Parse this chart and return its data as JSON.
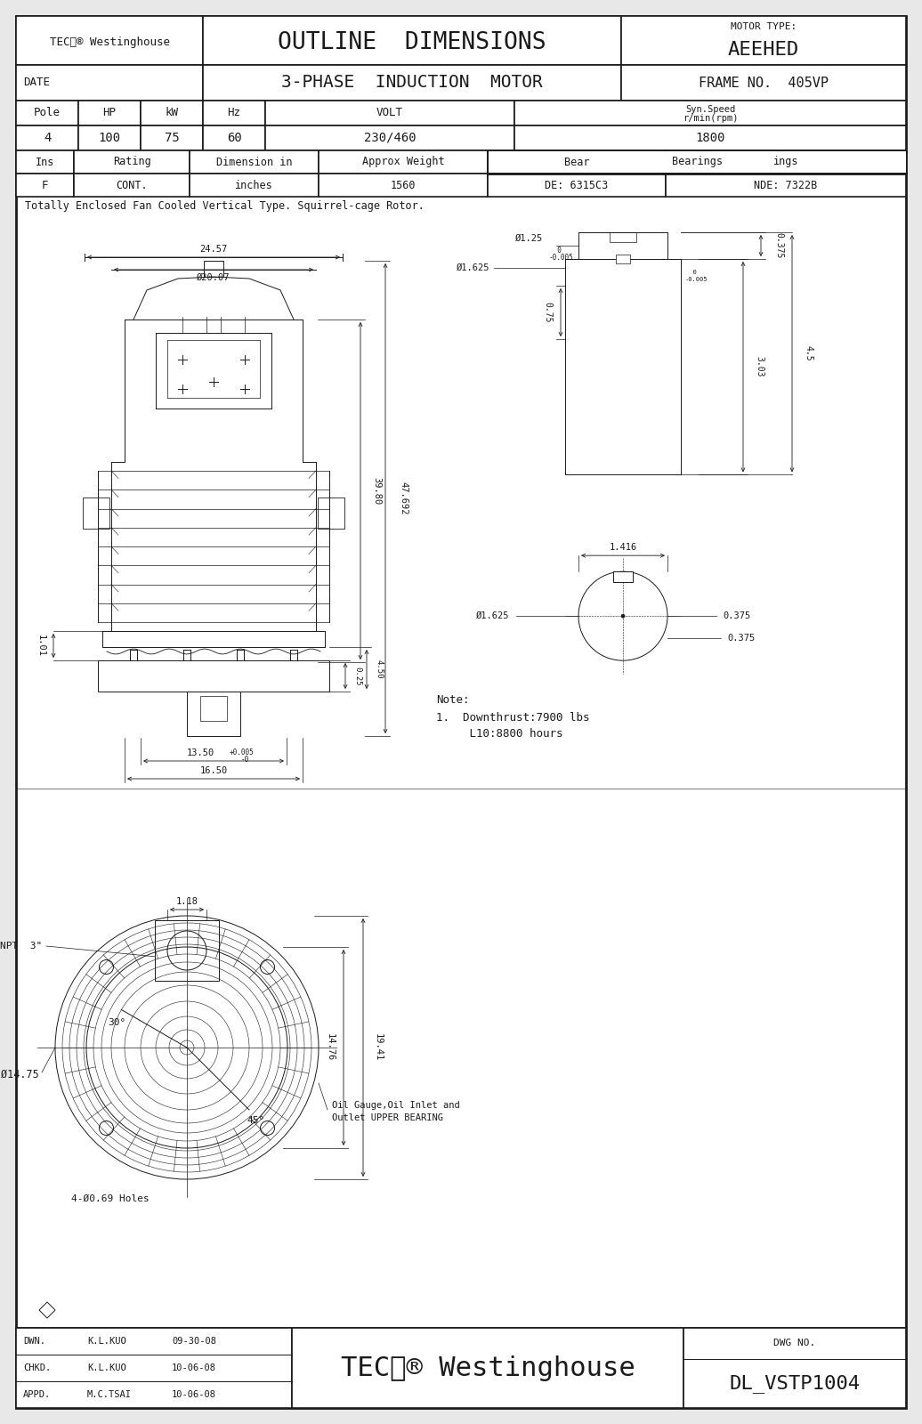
{
  "bg_color": "#e8e8e8",
  "paper_color": "#ffffff",
  "line_color": "#1a1a1a",
  "title1": "OUTLINE  DIMENSIONS",
  "title2": "3-PHASE  INDUCTION  MOTOR",
  "motor_type_label": "MOTOR TYPE:",
  "motor_type": "AEEHED",
  "frame_label": "FRAME NO.  405VP",
  "date_label": "DATE",
  "pole": "4",
  "hp": "100",
  "kw": "75",
  "hz": "60",
  "volt": "230/460",
  "syn_speed": "1800",
  "ins": "F",
  "rating": "CONT.",
  "dim_unit": "inches",
  "approx_weight": "1560",
  "bearing_de": "DE: 6315C3",
  "bearing_nde": "NDE: 7322B",
  "description": "Totally Enclosed Fan Cooled Vertical Type. Squirrel-cage Rotor.",
  "note_title": "Note:",
  "note1": "1.  Downthrust:7900 lbs",
  "note2": "     L10:8800 hours",
  "dwn_label": "DWN.",
  "dwn_name": "K.L.KUO",
  "dwn_date": "09-30-08",
  "chkd_label": "CHKD.",
  "chkd_name": "K.L.KUO",
  "chkd_date": "10-06-08",
  "appd_label": "APPD.",
  "appd_name": "M.C.TSAI",
  "appd_date": "10-06-08",
  "dwg_no_label": "DWG NO.",
  "dwg_no": "DL_VSTP1004"
}
